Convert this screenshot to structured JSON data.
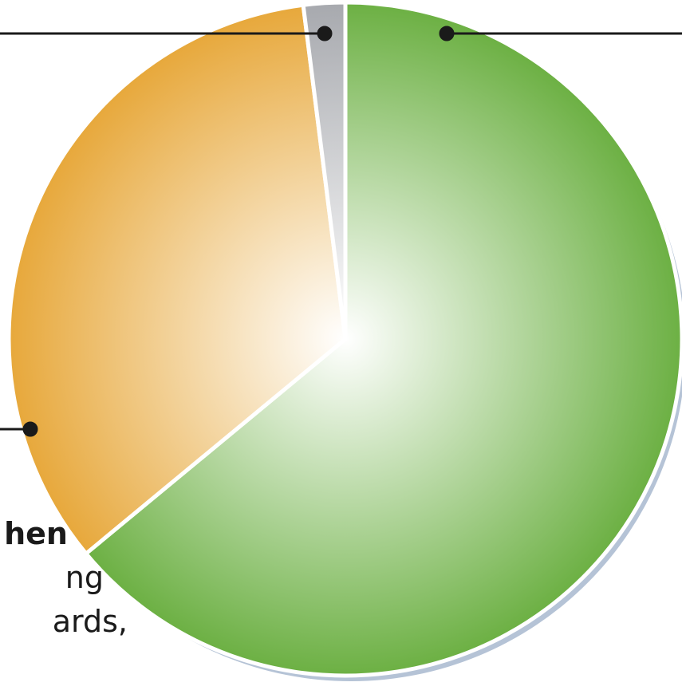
{
  "chart_data": {
    "type": "pie",
    "categories": [
      null,
      null,
      null
    ],
    "series": [
      {
        "values": [
          64,
          34,
          2
        ],
        "colors": [
          "#6cb043",
          "#e7a83b",
          "#a7a9ae"
        ]
      }
    ],
    "annotations": [
      "hen",
      "ng",
      "ards,"
    ]
  }
}
